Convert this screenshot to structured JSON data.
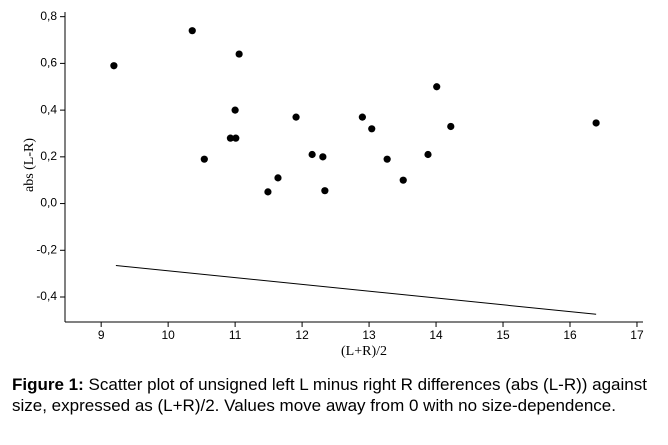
{
  "chart_data": {
    "type": "scatter",
    "xlabel": "(L+R)/2",
    "ylabel": "abs (L-R)",
    "x": [
      9.19,
      10.36,
      10.54,
      11.06,
      11.0,
      10.93,
      11.01,
      11.49,
      11.64,
      11.91,
      12.15,
      12.31,
      12.34,
      12.9,
      13.04,
      13.27,
      13.51,
      13.88,
      14.01,
      14.22,
      16.39
    ],
    "values": [
      0.59,
      0.74,
      0.19,
      0.64,
      0.4,
      0.28,
      0.28,
      0.05,
      0.11,
      0.37,
      0.21,
      0.2,
      0.055,
      0.37,
      0.32,
      0.19,
      0.1,
      0.21,
      0.5,
      0.33,
      0.345
    ],
    "color": "#000000",
    "fit": {
      "x": [
        9.22,
        16.39
      ],
      "values": [
        -0.265,
        -0.474
      ]
    },
    "xlim": [
      8.46,
      17.09
    ],
    "xticks": [
      9,
      10,
      11,
      12,
      13,
      14,
      15,
      16,
      17
    ],
    "ylim": [
      -0.507,
      0.82
    ],
    "yticks": [
      {
        "value": 0.8,
        "label": "0,8"
      },
      {
        "value": 0.6,
        "label": "0,6"
      },
      {
        "value": 0.4,
        "label": "0,4"
      },
      {
        "value": 0.2,
        "label": "0,2"
      },
      {
        "value": 0.0,
        "label": "0,0"
      },
      {
        "value": -0.2,
        "label": "-0,2"
      },
      {
        "value": -0.4,
        "label": "-0,4"
      }
    ]
  },
  "caption": {
    "label": "Figure 1:",
    "text": "Scatter plot of unsigned left L minus right R differences (abs (L-R)) against size, expressed as (L+R)/2. Values move away from 0 with no size-dependence."
  }
}
